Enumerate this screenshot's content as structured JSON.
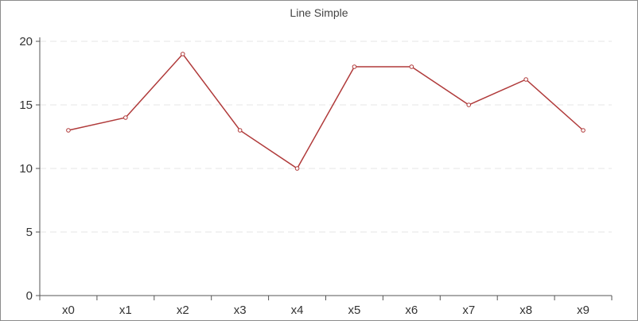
{
  "chart_data": {
    "type": "line",
    "title": "Line Simple",
    "xlabel": "",
    "ylabel": "",
    "categories": [
      "x0",
      "x1",
      "x2",
      "x3",
      "x4",
      "x5",
      "x6",
      "x7",
      "x8",
      "x9"
    ],
    "series": [
      {
        "values": [
          13,
          14,
          19,
          13,
          10,
          18,
          18,
          15,
          17,
          13
        ],
        "color": "#b03a3a"
      }
    ],
    "ylim": [
      0,
      20
    ],
    "yticks": [
      "0",
      "5",
      "10",
      "15",
      "20"
    ],
    "grid": true,
    "gridColor": "#e6e6e6",
    "legend": "none"
  }
}
